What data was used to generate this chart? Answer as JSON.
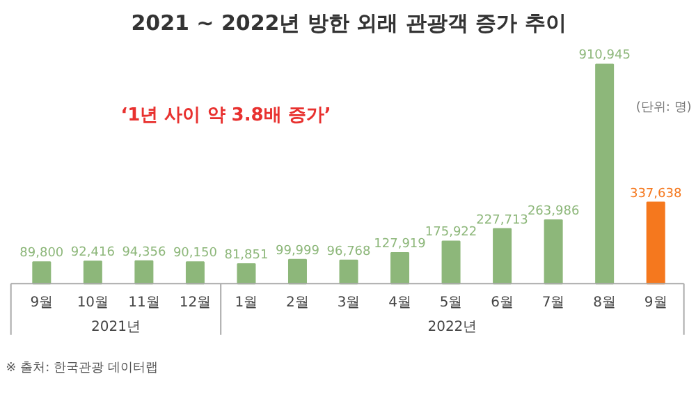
{
  "chart_data": {
    "type": "bar",
    "title": "2021 ~ 2022년 방한 외래 관광객 증가 추이",
    "subtitle": "‘1년 사이 약 3.8배 증가’",
    "categories": [
      "9월",
      "10월",
      "11월",
      "12월",
      "1월",
      "2월",
      "3월",
      "4월",
      "5월",
      "6월",
      "7월",
      "8월",
      "9월"
    ],
    "values": [
      89800,
      92416,
      94356,
      90150,
      81851,
      99999,
      96768,
      127919,
      175922,
      227713,
      263986,
      910945,
      337638
    ],
    "colors": [
      "#8db77a",
      "#8db77a",
      "#8db77a",
      "#8db77a",
      "#8db77a",
      "#8db77a",
      "#8db77a",
      "#8db77a",
      "#8db77a",
      "#8db77a",
      "#8db77a",
      "#8db77a",
      "#f5781e"
    ],
    "value_labels": [
      "89,800",
      "92,416",
      "94,356",
      "90,150",
      "81,851",
      "99,999",
      "96,768",
      "127,919",
      "175,922",
      "227,713",
      "263,986",
      "910,945",
      "337,638"
    ],
    "annotations": [
      "(단위: 명)",
      "2021년",
      "2022년",
      "※ 출처: 한국관광 데이터랩"
    ]
  }
}
